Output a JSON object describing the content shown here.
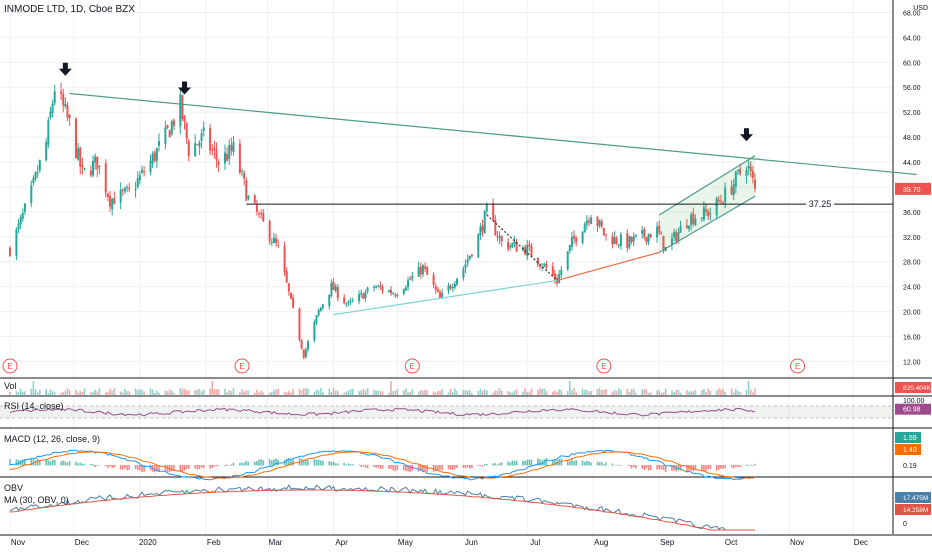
{
  "header": {
    "title": "INMODE LTD, 1D, Cboe BZX"
  },
  "colors": {
    "up": "#26a69a",
    "down": "#ef5350",
    "trendline": "#4c9a8a",
    "support": "#7fd3d0",
    "support2": "#f06b4a",
    "rsi": "#9c4c8c",
    "macd": "#2196f3",
    "signal": "#ff6d00",
    "obv": "#4a7fa8",
    "obv_ma": "#e05545",
    "last_price_bg": "#ef5350",
    "grid": "#eef0f4"
  },
  "chart_data": {
    "type": "candlestick",
    "symbol": "INMODE LTD",
    "interval": "1D",
    "exchange": "Cboe BZX",
    "currency": "USD",
    "x_labels": [
      "Nov",
      "Dec",
      "2020",
      "Feb",
      "Mar",
      "Apr",
      "May",
      "Jun",
      "Jul",
      "Aug",
      "Sep",
      "Oct",
      "Nov",
      "Dec"
    ],
    "price_axis": {
      "ticks": [
        "68.00",
        "64.00",
        "60.00",
        "56.00",
        "52.00",
        "48.00",
        "44.00",
        "40.00",
        "36.00",
        "32.00",
        "28.00",
        "24.00",
        "20.00",
        "16.00",
        "12.00"
      ],
      "range": [
        9.5,
        70
      ]
    },
    "close_path_points": [
      [
        "2019-11-01",
        30
      ],
      [
        "2019-11-10",
        38
      ],
      [
        "2019-11-18",
        47
      ],
      [
        "2019-11-22",
        56
      ],
      [
        "2019-11-29",
        50
      ],
      [
        "2019-12-05",
        42
      ],
      [
        "2019-12-12",
        44
      ],
      [
        "2019-12-18",
        38
      ],
      [
        "2019-12-27",
        39
      ],
      [
        "2020-01-06",
        44
      ],
      [
        "2020-01-13",
        48
      ],
      [
        "2020-01-20",
        53
      ],
      [
        "2020-01-24",
        46
      ],
      [
        "2020-01-31",
        48
      ],
      [
        "2020-02-07",
        44
      ],
      [
        "2020-02-14",
        46
      ],
      [
        "2020-02-21",
        38
      ],
      [
        "2020-02-28",
        34
      ],
      [
        "2020-03-06",
        30
      ],
      [
        "2020-03-13",
        20
      ],
      [
        "2020-03-18",
        13
      ],
      [
        "2020-03-25",
        20
      ],
      [
        "2020-03-31",
        24
      ],
      [
        "2020-04-08",
        21
      ],
      [
        "2020-04-20",
        24
      ],
      [
        "2020-04-30",
        23
      ],
      [
        "2020-05-13",
        27
      ],
      [
        "2020-05-21",
        22
      ],
      [
        "2020-06-01",
        27
      ],
      [
        "2020-06-08",
        32
      ],
      [
        "2020-06-12",
        36
      ],
      [
        "2020-06-19",
        31
      ],
      [
        "2020-07-01",
        30
      ],
      [
        "2020-07-10",
        27
      ],
      [
        "2020-07-15",
        25
      ],
      [
        "2020-07-22",
        31
      ],
      [
        "2020-07-31",
        36
      ],
      [
        "2020-08-07",
        32
      ],
      [
        "2020-08-17",
        31
      ],
      [
        "2020-08-31",
        33
      ],
      [
        "2020-09-04",
        30
      ],
      [
        "2020-09-15",
        35
      ],
      [
        "2020-09-25",
        36
      ],
      [
        "2020-10-05",
        40
      ],
      [
        "2020-10-12",
        44
      ],
      [
        "2020-10-16",
        39.7
      ]
    ],
    "annotations": {
      "resistance_line": {
        "from": [
          "2019-11-29",
          55
        ],
        "to": [
          "2020-12-31",
          42
        ]
      },
      "horizontal_level": {
        "value": 37.25,
        "label": "37.25",
        "from": "2020-02-20"
      },
      "rising_support_1": {
        "from": [
          "2020-04-01",
          19.5
        ],
        "to": [
          "2020-07-15",
          25
        ]
      },
      "rising_support_2": {
        "from": [
          "2020-07-15",
          25
        ],
        "to": [
          "2020-09-01",
          29.5
        ]
      },
      "dotted_decline": {
        "from": [
          "2020-06-12",
          35.5
        ],
        "to": [
          "2020-07-15",
          25
        ]
      },
      "channel_lower": {
        "from": [
          "2020-09-01",
          29.5
        ],
        "to": [
          "2020-10-16",
          38.5
        ]
      },
      "channel_upper": {
        "from": [
          "2020-09-01",
          35.5
        ],
        "to": [
          "2020-10-16",
          45
        ]
      },
      "arrows": [
        [
          "2019-11-27",
          58
        ],
        [
          "2020-01-22",
          55
        ],
        [
          "2020-10-12",
          47.5
        ]
      ],
      "earnings_markers": {
        "label": "E",
        "dates": [
          "2019-11-01",
          "2020-02-18",
          "2020-05-08",
          "2020-08-06",
          "2020-11-05"
        ]
      }
    },
    "last_price": "39.70",
    "volume": {
      "label": "Vol",
      "last_label": "820.404K"
    },
    "rsi": {
      "label": "RSI (14, close)",
      "last_label": "60.98",
      "upper_tick": "100.00",
      "range": [
        0,
        100
      ],
      "band": [
        30,
        70
      ]
    },
    "macd": {
      "label": "MACD (12, 26, close, 9)",
      "macd_last": "1.59",
      "signal_last": "1.40",
      "hist_last": "0.19"
    },
    "obv": {
      "label": "OBV",
      "ma_label": "MA (30, OBV, 0)",
      "obv_last": "17.475M",
      "ma_last": "14.258M",
      "zero_tick": "0"
    }
  }
}
